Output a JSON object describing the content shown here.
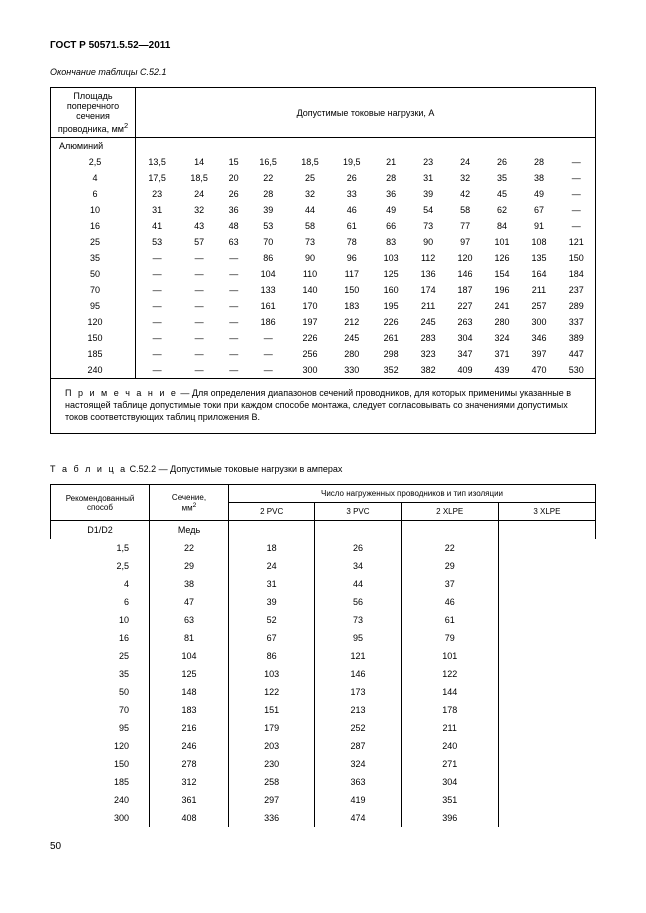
{
  "doc_header": "ГОСТ Р 50571.5.52—2011",
  "table1": {
    "caption": "Окончание таблицы С.52.1",
    "header_left": "Площадь поперечного сечения проводника, мм",
    "header_left_sup": "2",
    "header_right": "Допустимые токовые нагрузки, А",
    "material_label": "Алюминий",
    "rows": [
      {
        "label": "2,5",
        "cells": [
          "13,5",
          "14",
          "15",
          "16,5",
          "18,5",
          "19,5",
          "21",
          "23",
          "24",
          "26",
          "28",
          "—"
        ]
      },
      {
        "label": "4",
        "cells": [
          "17,5",
          "18,5",
          "20",
          "22",
          "25",
          "26",
          "28",
          "31",
          "32",
          "35",
          "38",
          "—"
        ]
      },
      {
        "label": "6",
        "cells": [
          "23",
          "24",
          "26",
          "28",
          "32",
          "33",
          "36",
          "39",
          "42",
          "45",
          "49",
          "—"
        ]
      },
      {
        "label": "10",
        "cells": [
          "31",
          "32",
          "36",
          "39",
          "44",
          "46",
          "49",
          "54",
          "58",
          "62",
          "67",
          "—"
        ]
      },
      {
        "label": "16",
        "cells": [
          "41",
          "43",
          "48",
          "53",
          "58",
          "61",
          "66",
          "73",
          "77",
          "84",
          "91",
          "—"
        ]
      },
      {
        "label": "25",
        "cells": [
          "53",
          "57",
          "63",
          "70",
          "73",
          "78",
          "83",
          "90",
          "97",
          "101",
          "108",
          "121"
        ]
      },
      {
        "label": "35",
        "cells": [
          "—",
          "—",
          "—",
          "86",
          "90",
          "96",
          "103",
          "112",
          "120",
          "126",
          "135",
          "150"
        ]
      },
      {
        "label": "50",
        "cells": [
          "—",
          "—",
          "—",
          "104",
          "110",
          "117",
          "125",
          "136",
          "146",
          "154",
          "164",
          "184"
        ]
      },
      {
        "label": "70",
        "cells": [
          "—",
          "—",
          "—",
          "133",
          "140",
          "150",
          "160",
          "174",
          "187",
          "196",
          "211",
          "237"
        ]
      },
      {
        "label": "95",
        "cells": [
          "—",
          "—",
          "—",
          "161",
          "170",
          "183",
          "195",
          "211",
          "227",
          "241",
          "257",
          "289"
        ]
      },
      {
        "label": "120",
        "cells": [
          "—",
          "—",
          "—",
          "186",
          "197",
          "212",
          "226",
          "245",
          "263",
          "280",
          "300",
          "337"
        ]
      },
      {
        "label": "150",
        "cells": [
          "—",
          "—",
          "—",
          "—",
          "226",
          "245",
          "261",
          "283",
          "304",
          "324",
          "346",
          "389"
        ]
      },
      {
        "label": "185",
        "cells": [
          "—",
          "—",
          "—",
          "—",
          "256",
          "280",
          "298",
          "323",
          "347",
          "371",
          "397",
          "447"
        ]
      },
      {
        "label": "240",
        "cells": [
          "—",
          "—",
          "—",
          "—",
          "300",
          "330",
          "352",
          "382",
          "409",
          "439",
          "470",
          "530"
        ]
      }
    ],
    "note_label": "П р и м е ч а н и е",
    "note_text": " — Для определения диапазонов сечений проводников, для которых применимы указанные в настоящей таблице допустимые токи при каждом способе монтажа, следует согласовывать со значениями допустимых токов соответствующих таблиц приложения В."
  },
  "table2": {
    "caption_prefix": "Т а б л и ц а",
    "caption_rest": "  С.52.2 — Допустимые токовые нагрузки в амперах",
    "col_method": "Рекомендованный способ",
    "col_section": "Сечение,",
    "col_section_unit": "мм",
    "col_section_sup": "2",
    "col_group": "Число нагруженных проводников и тип изоляции",
    "sub_cols": [
      "2 PVC",
      "3 PVC",
      "2 XLPE",
      "3 XLPE"
    ],
    "material_label": "Медь",
    "method_value": "D1/D2",
    "rows": [
      {
        "s": "1,5",
        "v": [
          "22",
          "18",
          "26",
          "22"
        ]
      },
      {
        "s": "2,5",
        "v": [
          "29",
          "24",
          "34",
          "29"
        ]
      },
      {
        "s": "4",
        "v": [
          "38",
          "31",
          "44",
          "37"
        ]
      },
      {
        "s": "6",
        "v": [
          "47",
          "39",
          "56",
          "46"
        ]
      },
      {
        "s": "10",
        "v": [
          "63",
          "52",
          "73",
          "61"
        ]
      },
      {
        "s": "16",
        "v": [
          "81",
          "67",
          "95",
          "79"
        ]
      },
      {
        "s": "25",
        "v": [
          "104",
          "86",
          "121",
          "101"
        ]
      },
      {
        "s": "35",
        "v": [
          "125",
          "103",
          "146",
          "122"
        ]
      },
      {
        "s": "50",
        "v": [
          "148",
          "122",
          "173",
          "144"
        ]
      },
      {
        "s": "70",
        "v": [
          "183",
          "151",
          "213",
          "178"
        ]
      },
      {
        "s": "95",
        "v": [
          "216",
          "179",
          "252",
          "211"
        ]
      },
      {
        "s": "120",
        "v": [
          "246",
          "203",
          "287",
          "240"
        ]
      },
      {
        "s": "150",
        "v": [
          "278",
          "230",
          "324",
          "271"
        ]
      },
      {
        "s": "185",
        "v": [
          "312",
          "258",
          "363",
          "304"
        ]
      },
      {
        "s": "240",
        "v": [
          "361",
          "297",
          "419",
          "351"
        ]
      },
      {
        "s": "300",
        "v": [
          "408",
          "336",
          "474",
          "396"
        ]
      }
    ]
  },
  "page_number": "50"
}
